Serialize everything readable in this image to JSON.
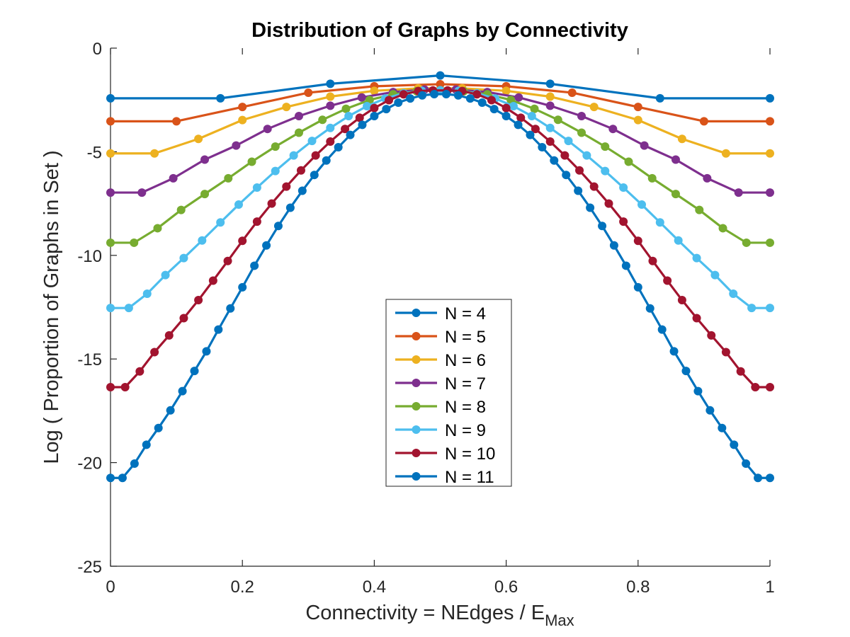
{
  "chart_data": {
    "type": "line",
    "title": "Distribution of Graphs by Connectivity",
    "xlabel": {
      "main": "Connectivity = NEdges / E",
      "sub": "Max"
    },
    "ylabel": "Log ( Proportion of Graphs in Set )",
    "xlim": [
      0,
      1
    ],
    "ylim": [
      -25,
      0
    ],
    "xticks": [
      0,
      0.2,
      0.4,
      0.6,
      0.8,
      1
    ],
    "xtick_labels": [
      "0",
      "0.2",
      "0.4",
      "0.6",
      "0.8",
      "1"
    ],
    "yticks": [
      0,
      -5,
      -10,
      -15,
      -20,
      -25
    ],
    "ytick_labels": [
      "0",
      "-5",
      "-10",
      "-15",
      "-20",
      "-25"
    ],
    "grid": false,
    "legend_position": "center",
    "series": [
      {
        "name": "N = 4",
        "color": "#0072BD",
        "x": [
          0,
          0.1667,
          0.3333,
          0.5,
          0.6667,
          0.8333,
          1
        ],
        "y": [
          -2.42,
          -2.42,
          -1.72,
          -1.32,
          -1.72,
          -2.42,
          -2.42
        ]
      },
      {
        "name": "N = 5",
        "color": "#D95319",
        "x": [
          0,
          0.1,
          0.2,
          0.3,
          0.4,
          0.5,
          0.6,
          0.7,
          0.8,
          0.9,
          1
        ],
        "y": [
          -3.53,
          -3.53,
          -2.84,
          -2.15,
          -1.84,
          -1.74,
          -1.84,
          -2.15,
          -2.84,
          -3.53,
          -3.53
        ]
      },
      {
        "name": "N = 6",
        "color": "#EDB120",
        "x": [
          0,
          0.0667,
          0.1333,
          0.2,
          0.2667,
          0.3333,
          0.4,
          0.4667,
          0.5333,
          0.6,
          0.6667,
          0.7333,
          0.8,
          0.8667,
          0.9333,
          1
        ],
        "y": [
          -5.08,
          -5.08,
          -4.38,
          -3.47,
          -2.84,
          -2.34,
          -2.06,
          -1.94,
          -1.94,
          -2.06,
          -2.34,
          -2.84,
          -3.47,
          -4.38,
          -5.08,
          -5.08
        ]
      },
      {
        "name": "N = 7",
        "color": "#7E2F8E",
        "x": [
          0,
          0.0476,
          0.0952,
          0.1429,
          0.1905,
          0.2381,
          0.2857,
          0.3333,
          0.381,
          0.4286,
          0.4762,
          0.5238,
          0.5714,
          0.619,
          0.6667,
          0.7143,
          0.7619,
          0.8095,
          0.8571,
          0.9048,
          0.9524,
          1
        ],
        "y": [
          -6.97,
          -6.97,
          -6.28,
          -5.38,
          -4.7,
          -3.9,
          -3.28,
          -2.78,
          -2.38,
          -2.12,
          -2.0,
          -2.0,
          -2.12,
          -2.38,
          -2.78,
          -3.28,
          -3.9,
          -4.7,
          -5.38,
          -6.28,
          -6.97,
          -6.97
        ]
      },
      {
        "name": "N = 8",
        "color": "#77AC30",
        "x": [
          0,
          0.0357,
          0.0714,
          0.1071,
          0.1429,
          0.1786,
          0.2143,
          0.25,
          0.2857,
          0.3214,
          0.3571,
          0.3929,
          0.4286,
          0.4643,
          0.5,
          0.5357,
          0.5714,
          0.6071,
          0.6429,
          0.6786,
          0.7143,
          0.75,
          0.7857,
          0.8214,
          0.8571,
          0.8929,
          0.9286,
          0.9643,
          1
        ],
        "y": [
          -9.39,
          -9.39,
          -8.69,
          -7.81,
          -7.04,
          -6.28,
          -5.48,
          -4.75,
          -4.08,
          -3.46,
          -2.93,
          -2.5,
          -2.23,
          -2.08,
          -2.03,
          -2.08,
          -2.23,
          -2.5,
          -2.93,
          -3.46,
          -4.08,
          -4.75,
          -5.48,
          -6.28,
          -7.04,
          -7.81,
          -8.69,
          -9.39,
          -9.39
        ]
      },
      {
        "name": "N = 9",
        "color": "#4DBEEE",
        "x": [
          0,
          0.0278,
          0.0556,
          0.0833,
          0.1111,
          0.1389,
          0.1667,
          0.1944,
          0.2222,
          0.25,
          0.2778,
          0.3056,
          0.3333,
          0.3611,
          0.3889,
          0.4167,
          0.4444,
          0.4722,
          0.5,
          0.5278,
          0.5556,
          0.5833,
          0.6111,
          0.6389,
          0.6667,
          0.6944,
          0.7222,
          0.75,
          0.7778,
          0.8056,
          0.8333,
          0.8611,
          0.8889,
          0.9167,
          0.9444,
          0.9722,
          1
        ],
        "y": [
          -12.54,
          -12.54,
          -11.85,
          -10.95,
          -10.13,
          -9.28,
          -8.41,
          -7.55,
          -6.73,
          -5.93,
          -5.18,
          -4.48,
          -3.85,
          -3.28,
          -2.8,
          -2.43,
          -2.18,
          -2.06,
          -2.03,
          -2.06,
          -2.18,
          -2.43,
          -2.8,
          -3.28,
          -3.85,
          -4.48,
          -5.18,
          -5.93,
          -6.73,
          -7.55,
          -8.41,
          -9.28,
          -10.13,
          -10.95,
          -11.85,
          -12.54,
          -12.54
        ]
      },
      {
        "name": "N = 10",
        "color": "#A2142F",
        "x": [
          0,
          0.0222,
          0.0444,
          0.0667,
          0.0889,
          0.1111,
          0.1333,
          0.1556,
          0.1778,
          0.2,
          0.2222,
          0.2444,
          0.2667,
          0.2889,
          0.3111,
          0.3333,
          0.3556,
          0.3778,
          0.4,
          0.4222,
          0.4444,
          0.4667,
          0.4889,
          0.5111,
          0.5333,
          0.5556,
          0.5778,
          0.6,
          0.6222,
          0.6444,
          0.6667,
          0.6889,
          0.7111,
          0.7333,
          0.7556,
          0.7778,
          0.8,
          0.8222,
          0.8444,
          0.8667,
          0.8889,
          0.9111,
          0.9333,
          0.9556,
          0.9778,
          1
        ],
        "y": [
          -16.36,
          -16.36,
          -15.6,
          -14.67,
          -13.86,
          -13.03,
          -12.16,
          -11.22,
          -10.27,
          -9.3,
          -8.37,
          -7.5,
          -6.68,
          -5.9,
          -5.18,
          -4.51,
          -3.9,
          -3.36,
          -2.89,
          -2.51,
          -2.23,
          -2.07,
          -2.04,
          -2.04,
          -2.07,
          -2.23,
          -2.51,
          -2.89,
          -3.36,
          -3.9,
          -4.51,
          -5.18,
          -5.9,
          -6.68,
          -7.5,
          -8.37,
          -9.3,
          -10.27,
          -11.22,
          -12.16,
          -13.03,
          -13.86,
          -14.67,
          -15.6,
          -16.36,
          -16.36
        ]
      },
      {
        "name": "N = 11",
        "color": "#0072BD",
        "x": [
          0,
          0.0182,
          0.0364,
          0.0545,
          0.0727,
          0.0909,
          0.1091,
          0.1273,
          0.1455,
          0.1636,
          0.1818,
          0.2,
          0.2182,
          0.2364,
          0.2545,
          0.2727,
          0.2909,
          0.3091,
          0.3273,
          0.3455,
          0.3636,
          0.3818,
          0.4,
          0.4182,
          0.4364,
          0.4545,
          0.4727,
          0.4909,
          0.5091,
          0.5273,
          0.5455,
          0.5636,
          0.5818,
          0.6,
          0.6182,
          0.6364,
          0.6545,
          0.6727,
          0.6909,
          0.7091,
          0.7273,
          0.7455,
          0.7636,
          0.7818,
          0.8,
          0.8182,
          0.8364,
          0.8545,
          0.8727,
          0.8909,
          0.9091,
          0.9273,
          0.9455,
          0.9636,
          0.9818,
          1
        ],
        "y": [
          -20.74,
          -20.74,
          -20.05,
          -19.14,
          -18.33,
          -17.48,
          -16.55,
          -15.58,
          -14.63,
          -13.58,
          -12.56,
          -11.54,
          -10.5,
          -9.52,
          -8.58,
          -7.7,
          -6.88,
          -6.12,
          -5.42,
          -4.78,
          -4.19,
          -3.7,
          -3.28,
          -2.94,
          -2.63,
          -2.43,
          -2.28,
          -2.22,
          -2.22,
          -2.28,
          -2.43,
          -2.63,
          -2.94,
          -3.28,
          -3.7,
          -4.19,
          -4.78,
          -5.42,
          -6.12,
          -6.88,
          -7.7,
          -8.58,
          -9.52,
          -10.5,
          -11.54,
          -12.56,
          -13.58,
          -14.63,
          -15.58,
          -16.55,
          -17.48,
          -18.33,
          -19.14,
          -20.05,
          -20.74,
          -20.74
        ]
      }
    ]
  }
}
